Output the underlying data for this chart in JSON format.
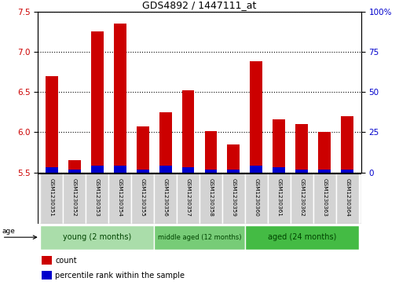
{
  "title": "GDS4892 / 1447111_at",
  "samples": [
    "GSM1230351",
    "GSM1230352",
    "GSM1230353",
    "GSM1230354",
    "GSM1230355",
    "GSM1230356",
    "GSM1230357",
    "GSM1230358",
    "GSM1230359",
    "GSM1230360",
    "GSM1230361",
    "GSM1230362",
    "GSM1230363",
    "GSM1230364"
  ],
  "count_values": [
    6.7,
    5.65,
    7.25,
    7.35,
    6.07,
    6.25,
    6.52,
    6.01,
    5.85,
    6.88,
    6.16,
    6.1,
    6.0,
    6.2
  ],
  "percentile_values": [
    3,
    2,
    4,
    4,
    2,
    4,
    3,
    2,
    2,
    4,
    3,
    2,
    2,
    2
  ],
  "ylim_left": [
    5.5,
    7.5
  ],
  "ylim_right": [
    0,
    100
  ],
  "yticks_left": [
    5.5,
    6.0,
    6.5,
    7.0,
    7.5
  ],
  "yticks_right": [
    0,
    25,
    50,
    75,
    100
  ],
  "bar_width": 0.55,
  "count_color": "#cc0000",
  "percentile_color": "#0000cc",
  "groups": [
    {
      "label": "young (2 months)",
      "indices": [
        0,
        1,
        2,
        3,
        4
      ],
      "color": "#aaddaa"
    },
    {
      "label": "middle aged (12 months)",
      "indices": [
        5,
        6,
        7,
        8
      ],
      "color": "#77cc77"
    },
    {
      "label": "aged (24 months)",
      "indices": [
        9,
        10,
        11,
        12,
        13
      ],
      "color": "#44bb44"
    }
  ],
  "age_label": "age",
  "legend_count": "count",
  "legend_percentile": "percentile rank within the sample",
  "tick_label_color_left": "#cc0000",
  "tick_label_color_right": "#0000cc",
  "sample_box_color": "#d3d3d3",
  "sample_box_edge": "#ffffff"
}
